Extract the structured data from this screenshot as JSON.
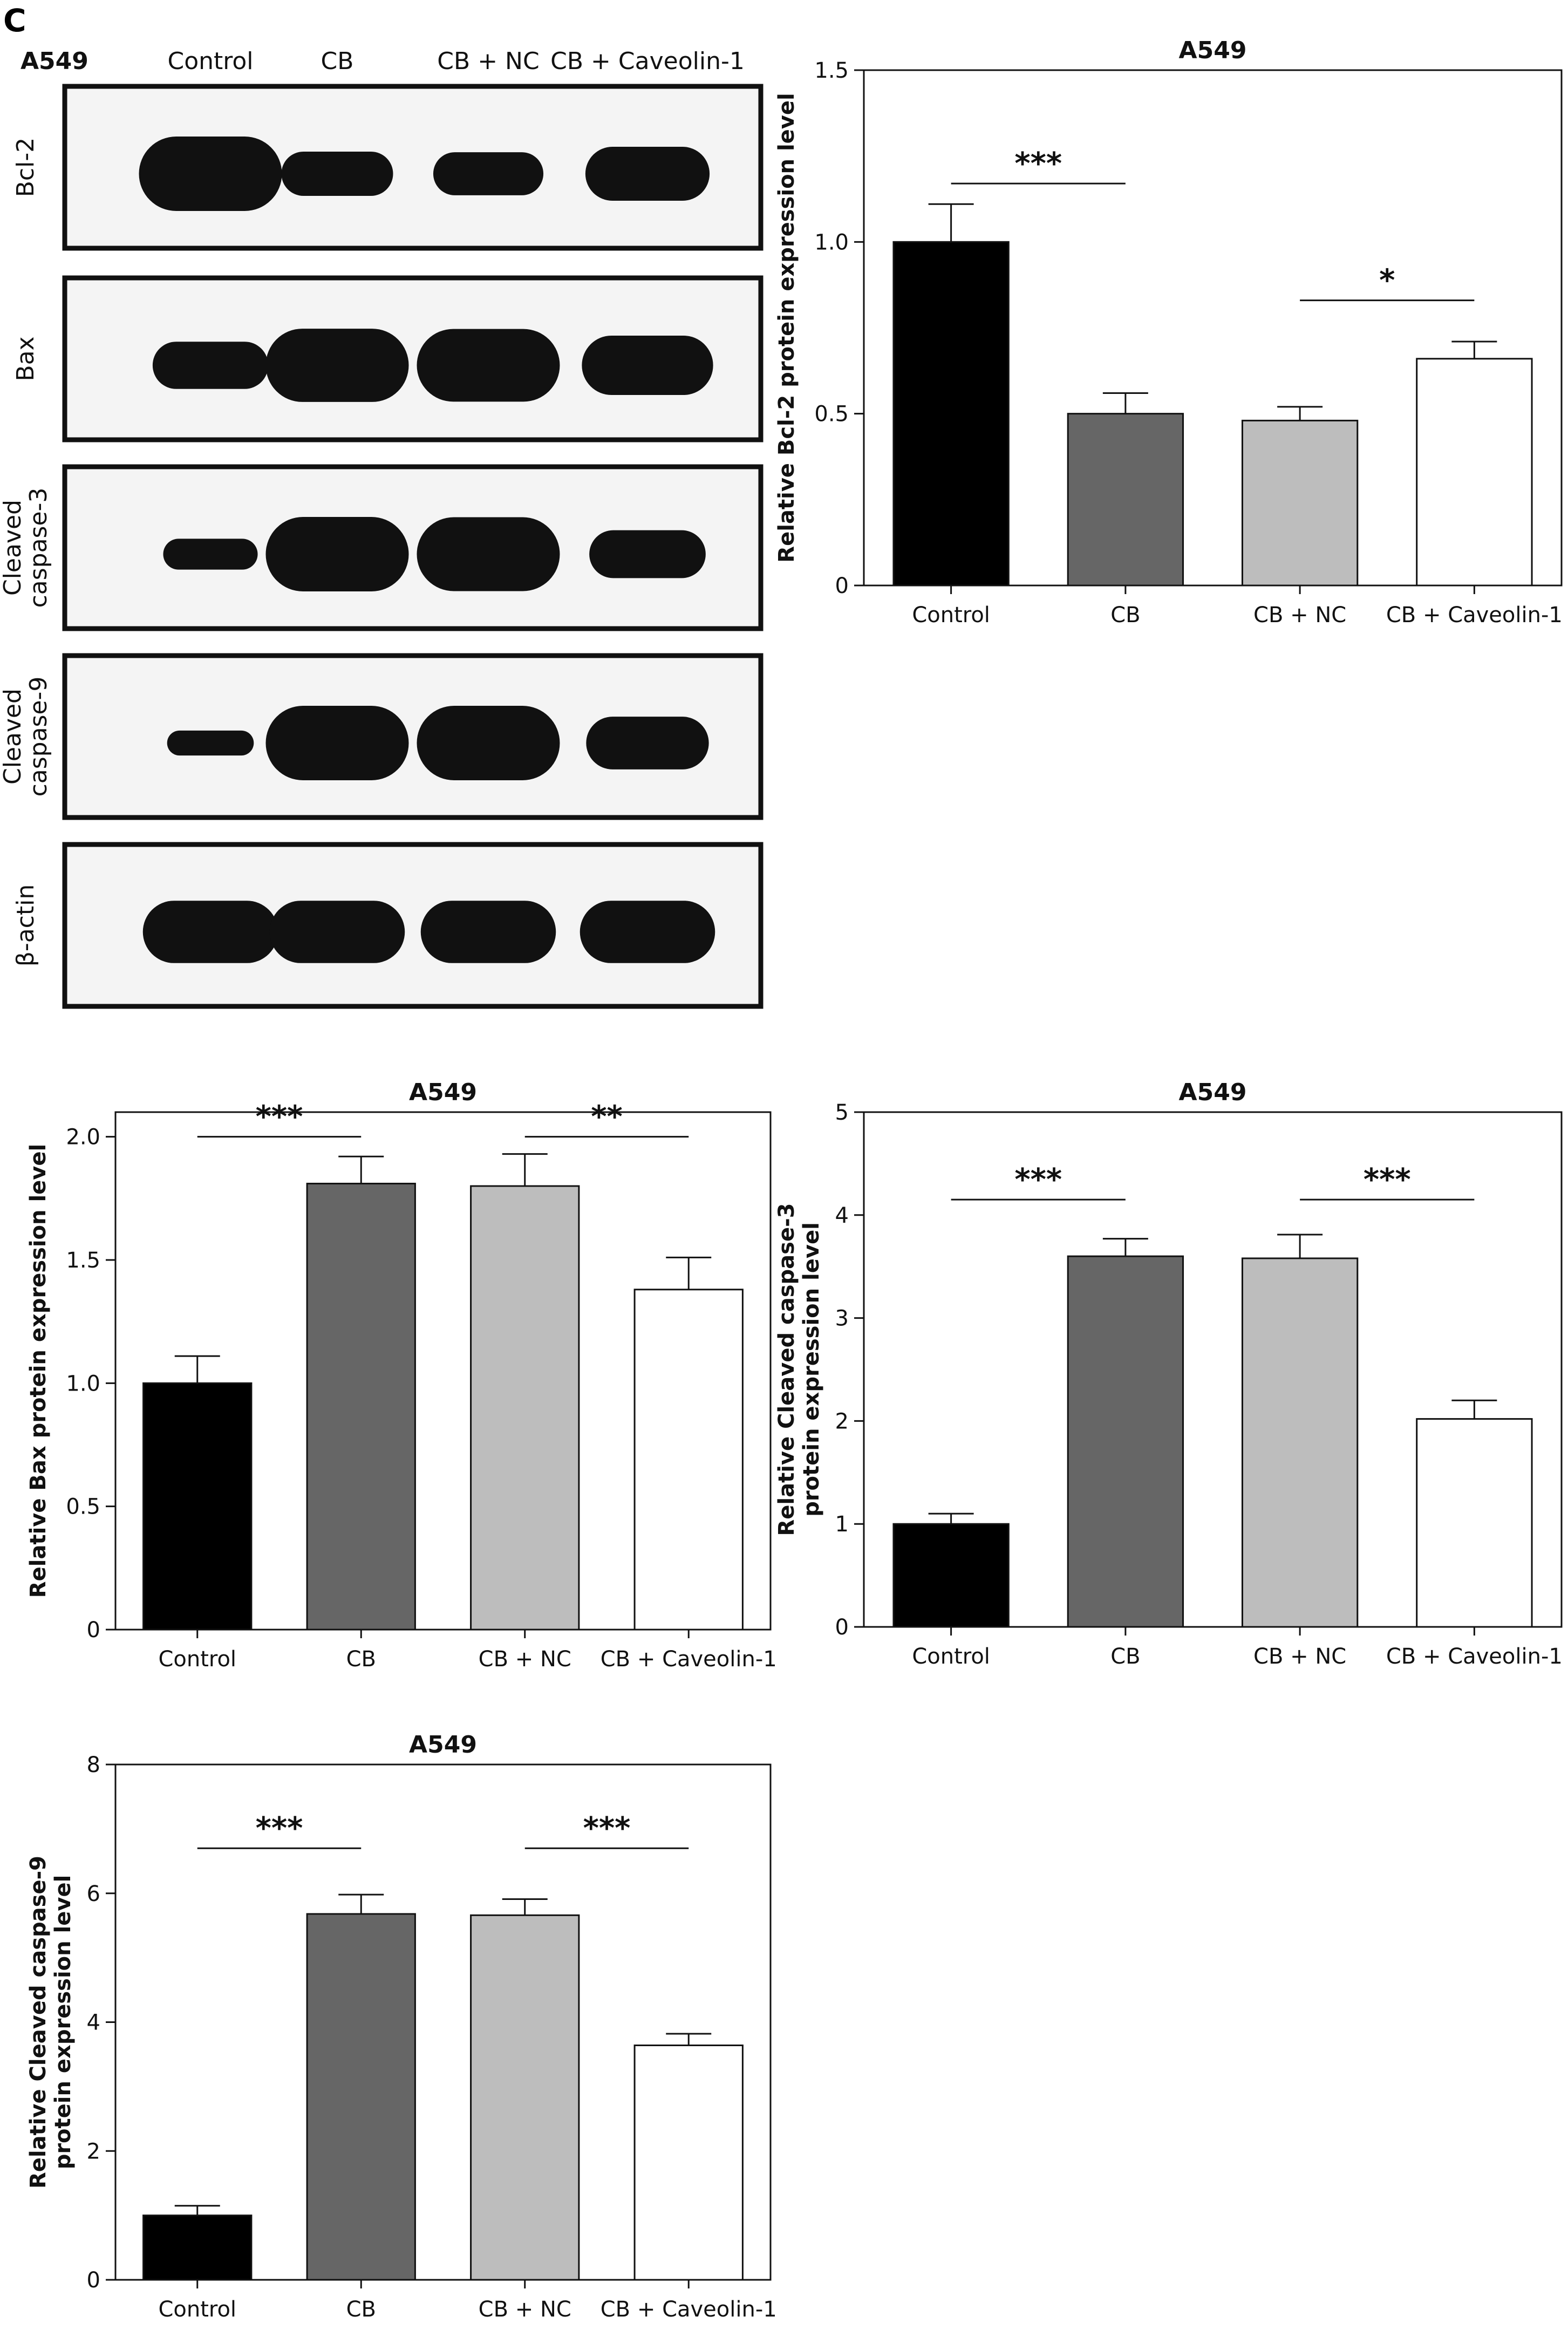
{
  "panel_letter": "C",
  "blot": {
    "title": "A549",
    "lanes": [
      "Control",
      "CB",
      "CB + NC",
      "CB + Caveolin-1"
    ],
    "rows": [
      {
        "label": [
          "Bcl-2"
        ],
        "intensity": [
          1.0,
          0.5,
          0.48,
          0.66
        ]
      },
      {
        "label": [
          "Bax"
        ],
        "intensity": [
          0.55,
          0.98,
          0.97,
          0.75
        ]
      },
      {
        "label": [
          "Cleaved",
          "caspase-3"
        ],
        "intensity": [
          0.28,
          1.0,
          0.99,
          0.56
        ]
      },
      {
        "label": [
          "Cleaved",
          "caspase-9"
        ],
        "intensity": [
          0.18,
          1.0,
          1.0,
          0.64
        ]
      },
      {
        "label": [
          "β-actin"
        ],
        "intensity": [
          0.8,
          0.8,
          0.8,
          0.8
        ]
      }
    ]
  },
  "colors": {
    "bar_fills": [
      "#000000",
      "#666666",
      "#bdbdbd",
      "#ffffff"
    ],
    "band": "#111111",
    "blot_bg": "#f4f4f4"
  },
  "chart_data": [
    {
      "type": "bar",
      "title": "A549",
      "categories": [
        "Control",
        "CB",
        "CB + NC",
        "CB + Caveolin-1"
      ],
      "values": [
        1.0,
        0.5,
        0.48,
        0.66
      ],
      "errors": [
        0.11,
        0.06,
        0.04,
        0.05
      ],
      "ylabel": [
        "Relative Bcl-2 protein expression level"
      ],
      "ylim": [
        0,
        1.5
      ],
      "yticks": [
        "0",
        "0.5",
        "1.0",
        "1.5"
      ],
      "significance": [
        {
          "from": 0,
          "to": 1,
          "level": 1.17,
          "text": "***"
        },
        {
          "from": 2,
          "to": 3,
          "level": 0.83,
          "text": "*"
        }
      ]
    },
    {
      "type": "bar",
      "title": "A549",
      "categories": [
        "Control",
        "CB",
        "CB + NC",
        "CB + Caveolin-1"
      ],
      "values": [
        1.0,
        1.81,
        1.8,
        1.38
      ],
      "errors": [
        0.11,
        0.11,
        0.13,
        0.13
      ],
      "ylabel": [
        "Relative Bax protein expression level"
      ],
      "ylim": [
        0,
        2.1
      ],
      "yticks": [
        "0",
        "0.5",
        "1.0",
        "1.5",
        "2.0"
      ],
      "significance": [
        {
          "from": 0,
          "to": 1,
          "level": 2.0,
          "text": "***"
        },
        {
          "from": 2,
          "to": 3,
          "level": 2.0,
          "text": "**"
        }
      ]
    },
    {
      "type": "bar",
      "title": "A549",
      "categories": [
        "Control",
        "CB",
        "CB + NC",
        "CB + Caveolin-1"
      ],
      "values": [
        1.0,
        3.6,
        3.58,
        2.02
      ],
      "errors": [
        0.1,
        0.17,
        0.23,
        0.18
      ],
      "ylabel": [
        "Relative Cleaved caspase-3",
        "protein expression level"
      ],
      "ylim": [
        0,
        5
      ],
      "yticks": [
        "0",
        "1",
        "2",
        "3",
        "4",
        "5"
      ],
      "significance": [
        {
          "from": 0,
          "to": 1,
          "level": 4.15,
          "text": "***"
        },
        {
          "from": 2,
          "to": 3,
          "level": 4.15,
          "text": "***"
        }
      ]
    },
    {
      "type": "bar",
      "title": "A549",
      "categories": [
        "Control",
        "CB",
        "CB + NC",
        "CB + Caveolin-1"
      ],
      "values": [
        1.0,
        5.68,
        5.66,
        3.64
      ],
      "errors": [
        0.15,
        0.3,
        0.25,
        0.18
      ],
      "ylabel": [
        "Relative Cleaved caspase-9",
        "protein expression level"
      ],
      "ylim": [
        0,
        8
      ],
      "yticks": [
        "0",
        "2",
        "4",
        "6",
        "8"
      ],
      "significance": [
        {
          "from": 0,
          "to": 1,
          "level": 6.7,
          "text": "***"
        },
        {
          "from": 2,
          "to": 3,
          "level": 6.7,
          "text": "***"
        }
      ]
    }
  ]
}
